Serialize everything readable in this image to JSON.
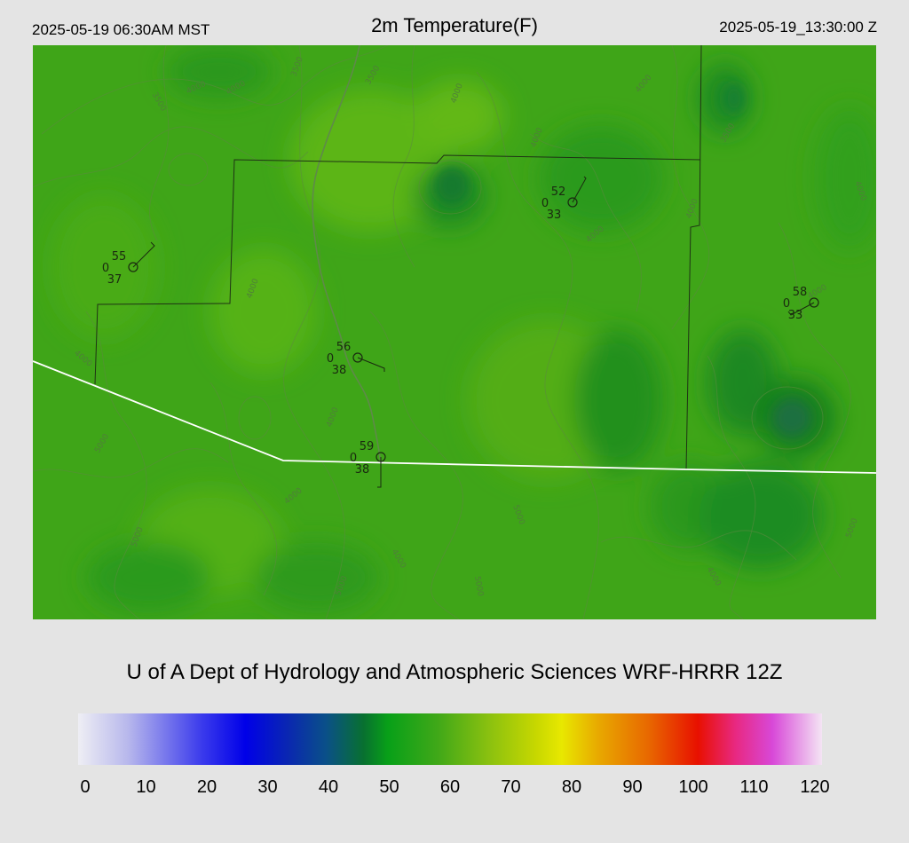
{
  "header": {
    "local_time": "2025-05-19 06:30AM MST",
    "title": "2m Temperature(F)",
    "utc_time": "2025-05-19_13:30:00 Z"
  },
  "credit": "U of A Dept of Hydrology and Atmospheric Sciences WRF-HRRR 12Z",
  "colorbar": {
    "ticks": [
      "0",
      "10",
      "20",
      "30",
      "40",
      "50",
      "60",
      "70",
      "80",
      "90",
      "100",
      "110",
      "120"
    ],
    "min": 0,
    "max": 120,
    "stops": [
      {
        "v": 0,
        "c": "#eeeef4"
      },
      {
        "v": 8,
        "c": "#b8b8ec"
      },
      {
        "v": 20,
        "c": "#3a3aec"
      },
      {
        "v": 27,
        "c": "#0000e8"
      },
      {
        "v": 34,
        "c": "#0a28b0"
      },
      {
        "v": 40,
        "c": "#0a5088"
      },
      {
        "v": 46,
        "c": "#087030"
      },
      {
        "v": 50,
        "c": "#08a018"
      },
      {
        "v": 58,
        "c": "#40a818"
      },
      {
        "v": 66,
        "c": "#88c010"
      },
      {
        "v": 74,
        "c": "#c8d800"
      },
      {
        "v": 78,
        "c": "#e8e800"
      },
      {
        "v": 84,
        "c": "#e8a800"
      },
      {
        "v": 92,
        "c": "#e86800"
      },
      {
        "v": 100,
        "c": "#e81000"
      },
      {
        "v": 106,
        "c": "#e82880"
      },
      {
        "v": 112,
        "c": "#d848d8"
      },
      {
        "v": 120,
        "c": "#f4e4f4"
      }
    ]
  },
  "stations": [
    {
      "temp": "55",
      "dew": "37",
      "gust": "0"
    },
    {
      "temp": "52",
      "dew": "33",
      "gust": "0"
    },
    {
      "temp": "58",
      "dew": "33",
      "gust": "0"
    },
    {
      "temp": "56",
      "dew": "38",
      "gust": "0"
    },
    {
      "temp": "59",
      "dew": "38",
      "gust": "0"
    }
  ],
  "contour_labels": [
    "3500",
    "4000",
    "4000",
    "3500",
    "3500",
    "4000",
    "4000",
    "4000",
    "3500",
    "4000",
    "4000",
    "4000",
    "4000",
    "4000",
    "4000",
    "4000",
    "5000",
    "4000",
    "5000",
    "5000",
    "4000",
    "5000",
    "5000",
    "4000",
    "5000"
  ],
  "colors": {
    "background": "#e4e4e4",
    "map_base": "#3fa518",
    "county_line": "#1f3315",
    "border_line": "#ffffff"
  }
}
